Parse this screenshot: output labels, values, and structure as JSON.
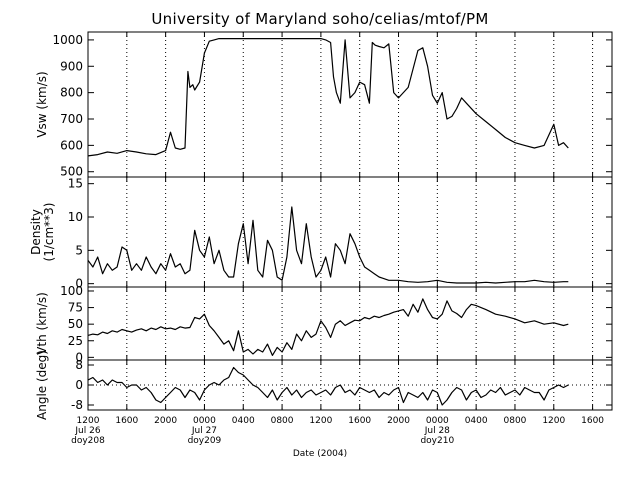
{
  "title": "University of Maryland  soho/celias/mtof/PM",
  "xlabel": "Date (2004)",
  "x_ticks": [
    {
      "hours": 0,
      "lines": [
        "1200",
        "Jul 26",
        "doy208"
      ]
    },
    {
      "hours": 4,
      "lines": [
        "1600"
      ]
    },
    {
      "hours": 8,
      "lines": [
        "2000"
      ]
    },
    {
      "hours": 12,
      "lines": [
        "0000",
        "Jul 27",
        "doy209"
      ]
    },
    {
      "hours": 16,
      "lines": [
        "0400"
      ]
    },
    {
      "hours": 20,
      "lines": [
        "0800"
      ]
    },
    {
      "hours": 24,
      "lines": [
        "1200"
      ]
    },
    {
      "hours": 28,
      "lines": [
        "1600"
      ]
    },
    {
      "hours": 32,
      "lines": [
        "2000"
      ]
    },
    {
      "hours": 36,
      "lines": [
        "0000",
        "Jul 28",
        "doy210"
      ]
    },
    {
      "hours": 40,
      "lines": [
        "0400"
      ]
    },
    {
      "hours": 44,
      "lines": [
        "0800"
      ]
    },
    {
      "hours": 48,
      "lines": [
        "1200"
      ]
    },
    {
      "hours": 52,
      "lines": [
        "1600"
      ]
    }
  ],
  "chart_data": [
    {
      "type": "line",
      "ylabel": "Vsw (km/s)",
      "ylim": [
        480,
        1030
      ],
      "yticks": [
        500,
        600,
        700,
        800,
        900,
        1000
      ],
      "zero_line": false,
      "grid": "vertical dotted",
      "x": [
        0,
        1,
        2,
        3,
        4,
        5,
        6,
        7,
        8,
        8.5,
        9,
        9.5,
        10,
        10.3,
        10.5,
        10.8,
        11,
        11.5,
        12,
        12.5,
        13,
        13.5,
        14,
        14.5,
        15,
        15.5,
        16,
        17,
        18,
        19,
        20,
        21,
        22,
        23,
        24,
        24.5,
        25,
        25.3,
        25.6,
        26,
        26.5,
        27,
        27.5,
        28,
        28.5,
        29,
        29.3,
        29.6,
        30,
        30.5,
        31,
        31.5,
        32,
        33,
        34,
        34.5,
        35,
        35.5,
        36,
        36.5,
        37,
        37.5,
        38,
        38.5,
        39,
        40,
        41,
        42,
        43,
        44,
        45,
        46,
        47,
        48,
        48.5,
        49,
        49.5
      ],
      "y": [
        560,
        565,
        575,
        570,
        580,
        575,
        568,
        565,
        580,
        650,
        590,
        585,
        590,
        880,
        820,
        830,
        810,
        840,
        950,
        995,
        1000,
        1005,
        1005,
        1005,
        1005,
        1005,
        1005,
        1005,
        1005,
        1005,
        1005,
        1005,
        1005,
        1005,
        1005,
        1000,
        990,
        860,
        800,
        760,
        1000,
        780,
        800,
        840,
        830,
        760,
        990,
        980,
        975,
        970,
        985,
        800,
        780,
        820,
        960,
        970,
        900,
        790,
        760,
        800,
        700,
        710,
        740,
        780,
        760,
        720,
        690,
        660,
        630,
        610,
        600,
        590,
        600,
        680,
        600,
        610,
        590
      ]
    },
    {
      "type": "line",
      "ylabel": "Density (1/cm**3)",
      "ylim": [
        -0.5,
        16
      ],
      "yticks": [
        0,
        5,
        10,
        15
      ],
      "zero_line": false,
      "grid": "vertical dotted",
      "x": [
        0,
        0.5,
        1,
        1.5,
        2,
        2.5,
        3,
        3.5,
        4,
        4.5,
        5,
        5.5,
        6,
        6.5,
        7,
        7.5,
        8,
        8.5,
        9,
        9.5,
        10,
        10.5,
        11,
        11.5,
        12,
        12.5,
        13,
        13.5,
        14,
        14.5,
        15,
        15.5,
        16,
        16.5,
        17,
        17.5,
        18,
        18.5,
        19,
        19.5,
        20,
        20.5,
        21,
        21.5,
        22,
        22.5,
        23,
        23.5,
        24,
        24.5,
        25,
        25.5,
        26,
        26.5,
        27,
        27.5,
        28,
        28.5,
        29,
        29.5,
        30,
        31,
        32,
        33,
        34,
        35,
        36,
        37,
        38,
        39,
        40,
        41,
        42,
        43,
        44,
        45,
        46,
        47,
        48,
        49,
        49.5
      ],
      "y": [
        3.5,
        2.5,
        4,
        1.5,
        3,
        2,
        2.5,
        5.5,
        5,
        2,
        3,
        2,
        4,
        2.5,
        1.5,
        3,
        2,
        4.5,
        2.5,
        3,
        1.5,
        2,
        8,
        5,
        4,
        7,
        3,
        5,
        2,
        1,
        1,
        6,
        9,
        3,
        9.5,
        2,
        1,
        6.5,
        5,
        1,
        0.5,
        4,
        11.5,
        5,
        3,
        9,
        4,
        1,
        2,
        4,
        1,
        6,
        5,
        3,
        7.5,
        6,
        4,
        2.5,
        2,
        1.5,
        1,
        0.5,
        0.5,
        0.3,
        0.2,
        0.3,
        0.5,
        0.2,
        0.1,
        0.1,
        0.1,
        0.2,
        0.1,
        0.2,
        0.3,
        0.3,
        0.5,
        0.3,
        0.2,
        0.3,
        0.3
      ]
    },
    {
      "type": "line",
      "ylabel": "Vth (km/s)",
      "ylim": [
        -4,
        106
      ],
      "yticks": [
        0,
        25,
        50,
        75,
        100
      ],
      "zero_line": false,
      "grid": "vertical dotted",
      "x": [
        0,
        0.5,
        1,
        1.5,
        2,
        2.5,
        3,
        3.5,
        4,
        4.5,
        5,
        5.5,
        6,
        6.5,
        7,
        7.5,
        8,
        8.5,
        9,
        9.5,
        10,
        10.5,
        11,
        11.5,
        12,
        12.5,
        13,
        13.5,
        14,
        14.5,
        15,
        15.5,
        16,
        16.5,
        17,
        17.5,
        18,
        18.5,
        19,
        19.5,
        20,
        20.5,
        21,
        21.5,
        22,
        22.5,
        23,
        23.5,
        24,
        24.5,
        25,
        25.5,
        26,
        26.5,
        27,
        27.5,
        28,
        28.5,
        29,
        29.5,
        30,
        30.5,
        31,
        31.5,
        32,
        32.5,
        33,
        33.5,
        34,
        34.5,
        35,
        35.5,
        36,
        36.5,
        37,
        37.5,
        38,
        38.5,
        39,
        39.5,
        40,
        41,
        42,
        43,
        44,
        45,
        46,
        47,
        48,
        49,
        49.5
      ],
      "y": [
        33,
        35,
        34,
        38,
        36,
        40,
        38,
        42,
        40,
        38,
        41,
        43,
        40,
        44,
        42,
        46,
        43,
        44,
        42,
        46,
        44,
        45,
        60,
        58,
        65,
        48,
        40,
        30,
        20,
        25,
        10,
        40,
        8,
        12,
        5,
        12,
        8,
        20,
        3,
        15,
        8,
        22,
        12,
        35,
        25,
        40,
        30,
        35,
        55,
        45,
        30,
        50,
        55,
        48,
        52,
        56,
        55,
        60,
        58,
        62,
        60,
        63,
        65,
        68,
        70,
        72,
        62,
        80,
        68,
        88,
        72,
        60,
        58,
        65,
        85,
        70,
        66,
        60,
        72,
        80,
        78,
        72,
        65,
        62,
        58,
        52,
        55,
        50,
        52,
        48,
        50
      ]
    },
    {
      "type": "line",
      "ylabel": "Angle (deg)",
      "ylim": [
        -10,
        10
      ],
      "yticks": [
        -8,
        0,
        8
      ],
      "zero_line": true,
      "grid": "vertical dotted",
      "x": [
        0,
        0.5,
        1,
        1.5,
        2,
        2.5,
        3,
        3.5,
        4,
        4.5,
        5,
        5.5,
        6,
        6.5,
        7,
        7.5,
        8,
        8.5,
        9,
        9.5,
        10,
        10.5,
        11,
        11.5,
        12,
        12.5,
        13,
        13.5,
        14,
        14.5,
        15,
        15.5,
        16,
        16.5,
        17,
        17.5,
        18,
        18.5,
        19,
        19.5,
        20,
        20.5,
        21,
        21.5,
        22,
        22.5,
        23,
        23.5,
        24,
        24.5,
        25,
        25.5,
        26,
        26.5,
        27,
        27.5,
        28,
        28.5,
        29,
        29.5,
        30,
        30.5,
        31,
        31.5,
        32,
        32.5,
        33,
        33.5,
        34,
        34.5,
        35,
        35.5,
        36,
        36.5,
        37,
        37.5,
        38,
        38.5,
        39,
        39.5,
        40,
        40.5,
        41,
        41.5,
        42,
        42.5,
        43,
        43.5,
        44,
        44.5,
        45,
        45.5,
        46,
        46.5,
        47,
        47.5,
        48,
        48.5,
        49,
        49.5
      ],
      "y": [
        2,
        3,
        1,
        2,
        0,
        2,
        1,
        1,
        -1,
        0,
        0,
        -2,
        -1,
        -3,
        -6,
        -7,
        -5,
        -3,
        -1,
        -2,
        -5,
        -2,
        -3,
        -6,
        -2,
        0,
        1,
        0,
        2,
        3,
        7,
        5,
        4,
        2,
        0,
        -1,
        -3,
        -5,
        -2,
        -6,
        -3,
        -1,
        -4,
        -2,
        -5,
        -3,
        -2,
        -4,
        -3,
        -2,
        -4,
        -1,
        0,
        -3,
        -2,
        -4,
        -1,
        -2,
        -3,
        -2,
        -5,
        -3,
        -4,
        -2,
        -1,
        -7,
        -3,
        -4,
        -5,
        -3,
        -6,
        -2,
        -3,
        -8,
        -6,
        -3,
        -1,
        -2,
        -6,
        -3,
        -2,
        -5,
        -4,
        -2,
        -3,
        -1,
        -4,
        -3,
        -2,
        -4,
        -1,
        -2,
        -3,
        -3,
        -6,
        -2,
        -1,
        0,
        -1,
        0
      ]
    }
  ]
}
